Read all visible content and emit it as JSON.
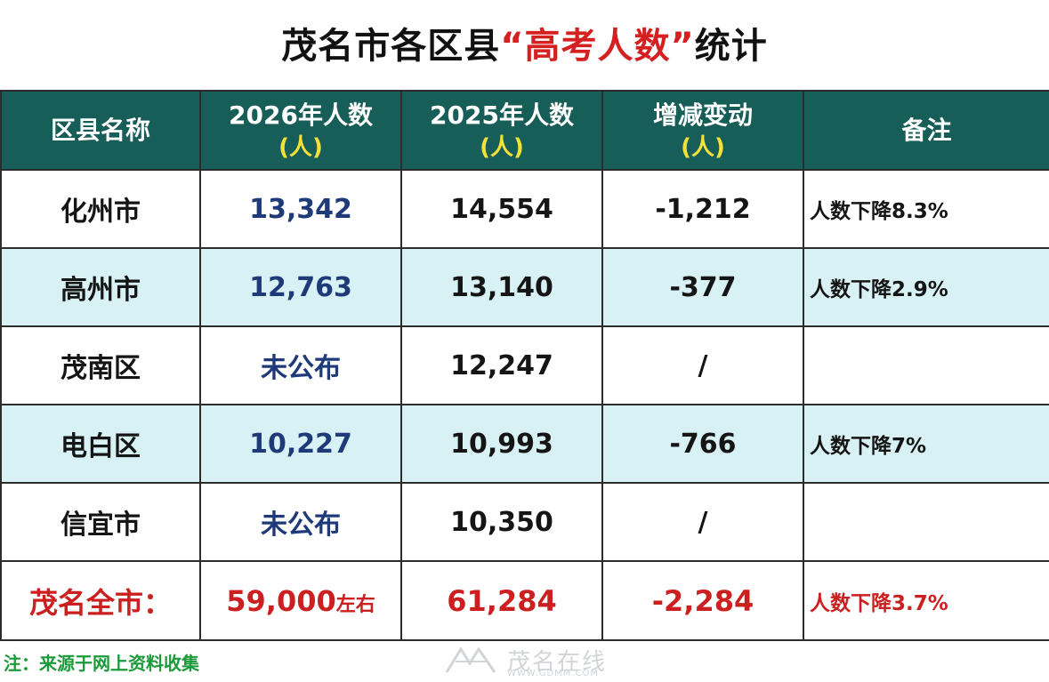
{
  "title": {
    "prefix": "茂名市各区县",
    "highlight": "“高考人数”",
    "suffix": "统计"
  },
  "table": {
    "headers": [
      {
        "label": "区县名称",
        "unit": ""
      },
      {
        "label": "2026年人数",
        "unit": "(人)"
      },
      {
        "label": "2025年人数",
        "unit": "(人)"
      },
      {
        "label": "增减变动",
        "unit": "(人)"
      },
      {
        "label": "备注",
        "unit": ""
      }
    ],
    "rows": [
      {
        "district": "化州市",
        "y2026": "13,342",
        "y2025": "14,554",
        "change": "-1,212",
        "note": "人数下降8.3%"
      },
      {
        "district": "高州市",
        "y2026": "12,763",
        "y2025": "13,140",
        "change": "-377",
        "note": "人数下降2.9%"
      },
      {
        "district": "茂南区",
        "y2026": "未公布",
        "y2025": "12,247",
        "change": "/",
        "note": ""
      },
      {
        "district": "电白区",
        "y2026": "10,227",
        "y2025": "10,993",
        "change": "-766",
        "note": "人数下降7%"
      },
      {
        "district": "信宜市",
        "y2026": "未公布",
        "y2025": "10,350",
        "change": "/",
        "note": ""
      }
    ],
    "total": {
      "district": "茂名全市：",
      "y2026": "59,000",
      "y2026_suffix": "左右",
      "y2025": "61,284",
      "change": "-2,284",
      "note": "人数下降3.7%"
    }
  },
  "footnote": "注：来源于网上资料收集",
  "watermark": {
    "text": "茂名在线",
    "site": "WWW.GDMM.COM"
  },
  "colors": {
    "header_bg": "#175d58",
    "header_unit": "#f3e13a",
    "alt_row": "#d7f1f4",
    "total_red": "#cc1f1f",
    "footnote_green": "#1c9a3a"
  }
}
